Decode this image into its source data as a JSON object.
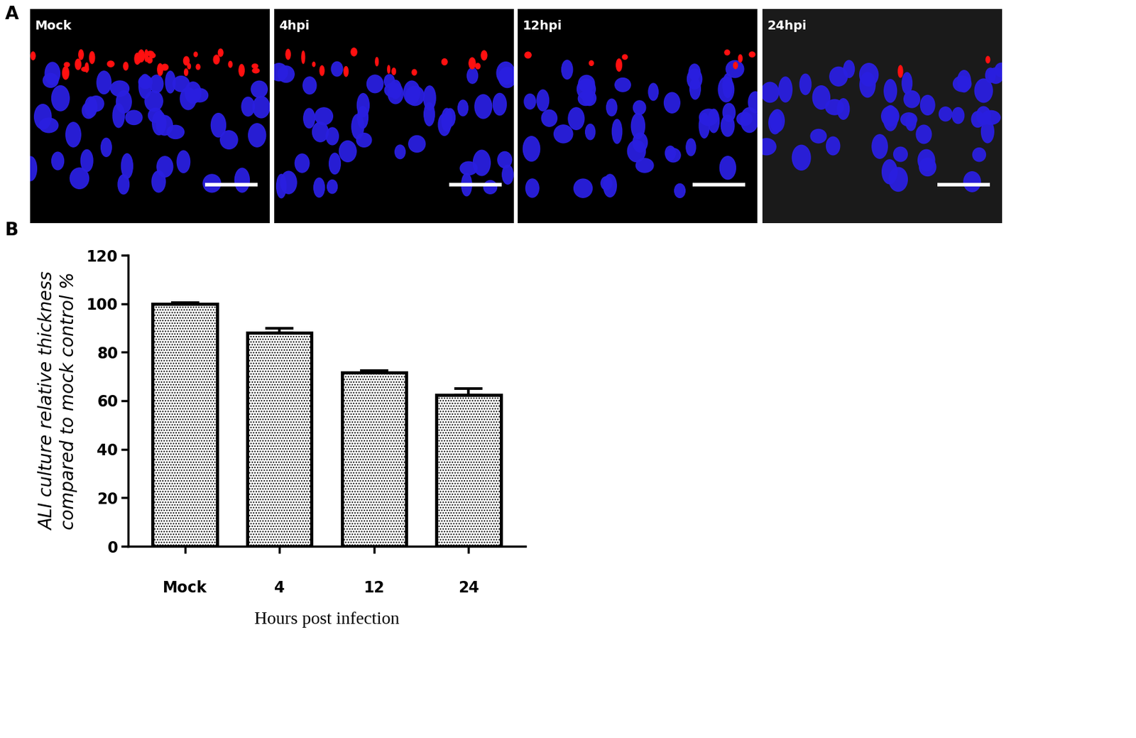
{
  "panel_labels": [
    "A",
    "B"
  ],
  "images": [
    "Mock",
    "4hpi",
    "12hpi",
    "24hpi"
  ],
  "chart_data": {
    "type": "bar",
    "categories": [
      "Mock",
      "4",
      "12",
      "24"
    ],
    "values": [
      100,
      88,
      71.5,
      62.5
    ],
    "errors": [
      0.5,
      2,
      1,
      2.5
    ],
    "x_label": "Hours post infection",
    "y_label": "ALI culture relative thickness\ncompared to mock control %",
    "ylim": [
      0,
      120
    ],
    "yticks": [
      0,
      20,
      40,
      60,
      80,
      100,
      120
    ],
    "color": "#ffffff",
    "grid": false
  }
}
